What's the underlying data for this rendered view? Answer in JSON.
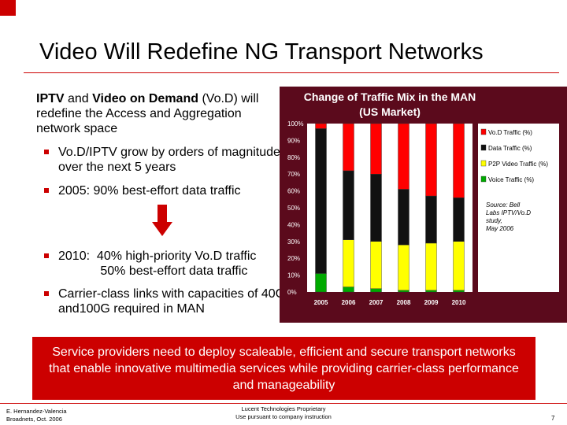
{
  "title": "Video Will Redefine NG Transport Networks",
  "intro": {
    "part1_bold": "IPTV",
    "part2": " and ",
    "part3_bold": "Video on Demand",
    "part4": " (Vo.D) will redefine the Access and Aggregation network space"
  },
  "bullets": [
    "Vo.D/IPTV grow by orders of magnitude over the next 5 years",
    "2005:  90% best-effort data traffic",
    "2010:  40% high-priority Vo.D traffic\n            50% best-effort data traffic",
    "Carrier-class links with capacities of 40G and100G required in MAN"
  ],
  "banner": "Service providers need to deploy scaleable, efficient and secure transport networks that enable innovative multimedia services while providing carrier-class performance and manageability",
  "footer": {
    "author": "E. Hernandez-Valencia",
    "venue": "Broadnets, Oct. 2006",
    "company": "Lucent Technologies Proprietary",
    "notice": "Use pursuant to company instruction",
    "page": "7"
  },
  "colors": {
    "accent": "#cc0000",
    "vod": "#ff0000",
    "data": "#111111",
    "p2p": "#ffff00",
    "voice": "#00aa00",
    "chart_bg": "#5b0a1c"
  },
  "chart_data": {
    "type": "bar",
    "stacked": true,
    "title_line1": "Change of Traffic Mix in the MAN",
    "title_line2": "(US Market)",
    "categories": [
      "2005",
      "2006",
      "2007",
      "2008",
      "2009",
      "2010"
    ],
    "yticks": [
      "0%",
      "10%",
      "20%",
      "30%",
      "40%",
      "50%",
      "60%",
      "70%",
      "80%",
      "90%",
      "100%"
    ],
    "ylim": [
      0,
      100
    ],
    "series": [
      {
        "name": "Voice Traffic (%)",
        "values": [
          11,
          3,
          2,
          1,
          1,
          1
        ]
      },
      {
        "name": "P2P Video Traffic (%)",
        "values": [
          0,
          28,
          28,
          27,
          28,
          29
        ]
      },
      {
        "name": "Data Traffic (%)",
        "values": [
          86,
          41,
          40,
          33,
          28,
          26
        ]
      },
      {
        "name": "Vo.D Traffic (%)",
        "values": [
          3,
          28,
          30,
          39,
          43,
          44
        ]
      }
    ],
    "legend_order": [
      "Vo.D Traffic (%)",
      "Data Traffic (%)",
      "P2P Video Traffic (%)",
      "Voice Traffic (%)"
    ],
    "legend_position": "right",
    "source": "Source: Bell Labs IPTV/Vo.D study, May 2006"
  }
}
